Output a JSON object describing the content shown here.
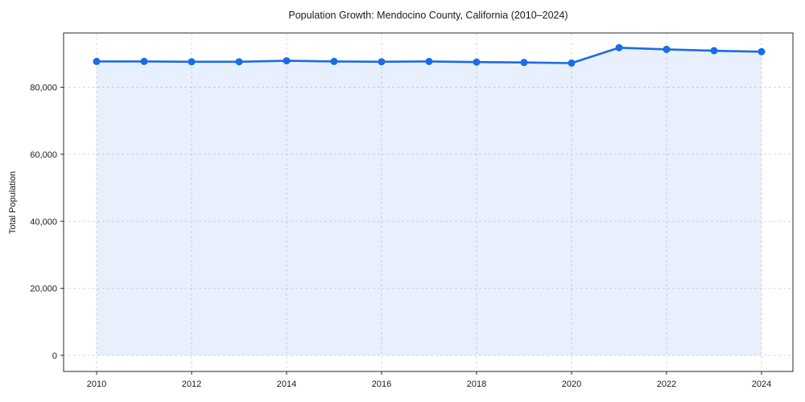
{
  "page": {
    "background": "#ffffff"
  },
  "chart_data": {
    "type": "area",
    "title": "Population Growth: Mendocino County, California (2010–2024)",
    "xlabel": "",
    "ylabel": "Total Population",
    "x": [
      2010,
      2011,
      2012,
      2013,
      2014,
      2015,
      2016,
      2017,
      2018,
      2019,
      2020,
      2021,
      2022,
      2023,
      2024
    ],
    "series": [
      {
        "name": "Total Population",
        "values": [
          87700,
          87700,
          87600,
          87600,
          87900,
          87700,
          87600,
          87700,
          87500,
          87400,
          87200,
          91800,
          91300,
          90900,
          90600
        ]
      }
    ],
    "xticks": [
      2010,
      2012,
      2014,
      2016,
      2018,
      2020,
      2022,
      2024
    ],
    "yticks": [
      0,
      20000,
      40000,
      60000,
      80000
    ],
    "ytick_labels": [
      "0",
      "20,000",
      "40,000",
      "60,000",
      "80,000"
    ],
    "ylim": [
      0,
      96000
    ],
    "xlim": [
      2009.3,
      2024.7
    ],
    "grid": true,
    "grid_style": "dashed",
    "legend": false,
    "marker": "circle",
    "colors": {
      "line": "#1a6ce8",
      "fill": "#e8f0fd",
      "grid": "#d9d9d9",
      "spine": "#2a2a2a",
      "text": "#1a1a1a"
    }
  }
}
